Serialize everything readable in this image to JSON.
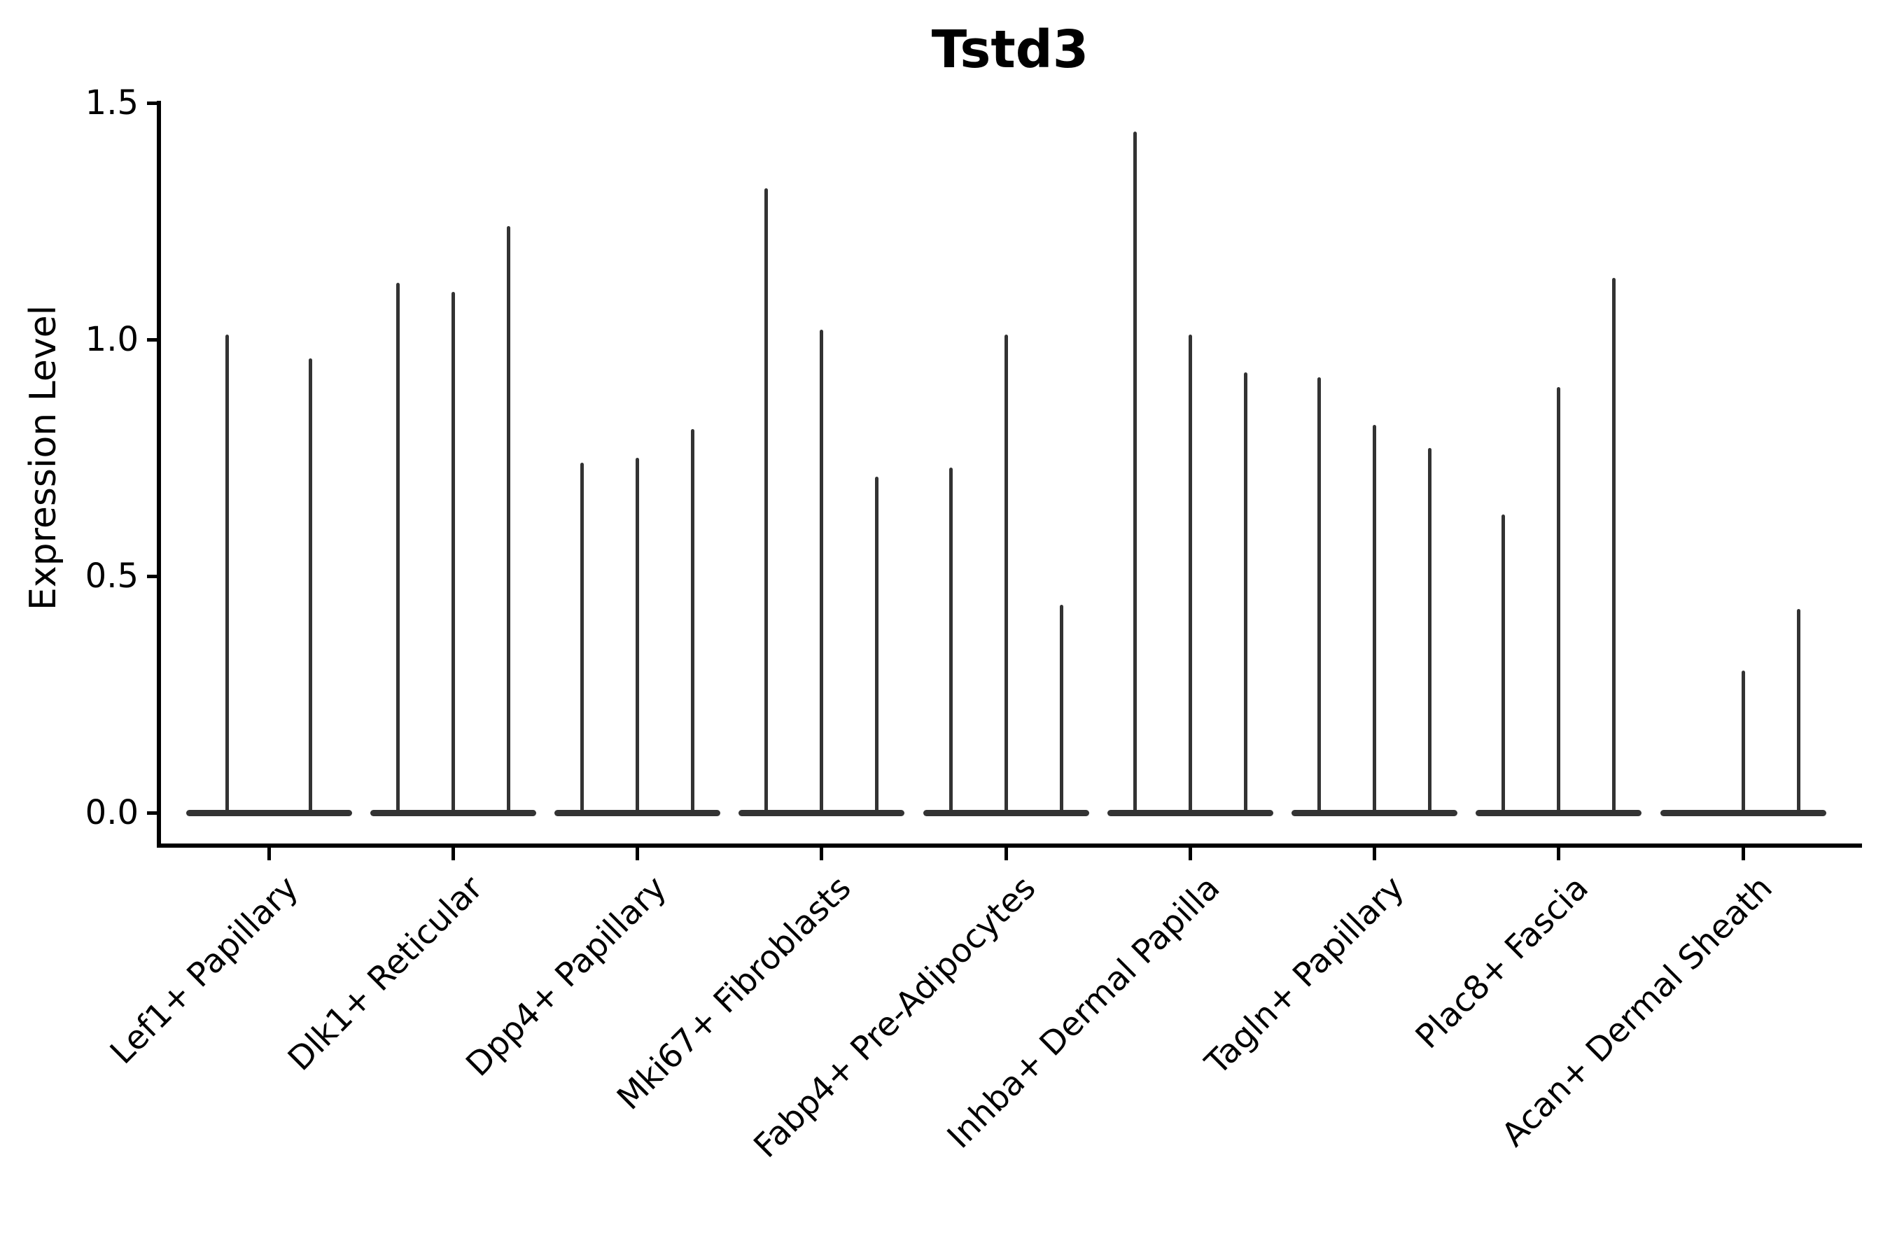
{
  "title": "Tstd3",
  "axes": {
    "ylabel": "Expression Level",
    "ytick_labels": [
      "0.0",
      "0.5",
      "1.0",
      "1.5"
    ],
    "ytick_values": [
      0.0,
      0.5,
      1.0,
      1.5
    ]
  },
  "colors": {
    "violin": "#333333",
    "axis": "#000000",
    "text": "#000000",
    "background": "#ffffff"
  },
  "chart_data": {
    "type": "violin",
    "title": "Tstd3",
    "xlabel": "",
    "ylabel": "Expression Level",
    "ylim": [
      -0.07,
      1.51
    ],
    "yticks": [
      0.0,
      0.5,
      1.0,
      1.5
    ],
    "grid": false,
    "legend": false,
    "categories": [
      "Lef1+ Papillary",
      "Dlk1+ Reticular",
      "Dpp4+ Papillary",
      "Mki67+ Fibroblasts",
      "Fabp4+ Pre-Adipocytes",
      "Inhba+ Dermal Papilla",
      "Tagln+ Papillary",
      "Plac8+ Fascia",
      "Acan+ Dermal Sheath"
    ],
    "description": "Sparse-expression violin plot: each category holds 2-3 thin violins (replicates), each a flat lens at 0 with a thin vertical spike rising to its maximum expression value; a value of 0 means a flat violin with no spike.",
    "groups": [
      {
        "label": "Lef1+ Papillary",
        "spike_maxima": [
          1.01,
          0.96
        ]
      },
      {
        "label": "Dlk1+ Reticular",
        "spike_maxima": [
          1.12,
          1.1,
          1.24
        ]
      },
      {
        "label": "Dpp4+ Papillary",
        "spike_maxima": [
          0.74,
          0.75,
          0.81
        ]
      },
      {
        "label": "Mki67+ Fibroblasts",
        "spike_maxima": [
          1.32,
          1.02,
          0.71
        ]
      },
      {
        "label": "Fabp4+ Pre-Adipocytes",
        "spike_maxima": [
          0.73,
          1.01,
          0.44
        ]
      },
      {
        "label": "Inhba+ Dermal Papilla",
        "spike_maxima": [
          1.44,
          1.01,
          0.93
        ]
      },
      {
        "label": "Tagln+ Papillary",
        "spike_maxima": [
          0.92,
          0.82,
          0.77
        ]
      },
      {
        "label": "Plac8+ Fascia",
        "spike_maxima": [
          0.63,
          0.9,
          1.13
        ]
      },
      {
        "label": "Acan+ Dermal Sheath",
        "spike_maxima": [
          0.0,
          0.3,
          0.43
        ]
      }
    ]
  }
}
